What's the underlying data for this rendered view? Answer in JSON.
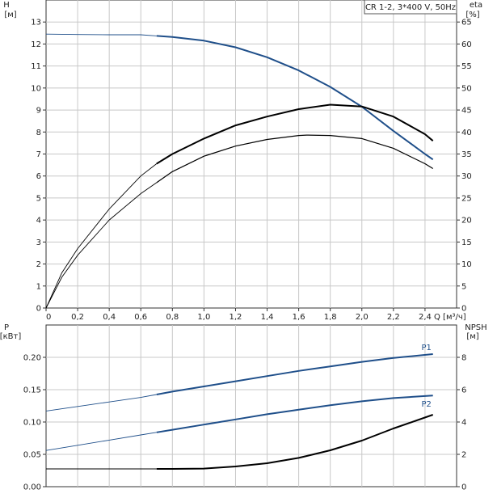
{
  "chart_data": [
    {
      "type": "line",
      "title": "CR 1-2, 3*400 V, 50Hz",
      "xlabel": "Q [м³/ч]",
      "ylabel_left": [
        "H",
        "[м]"
      ],
      "ylabel_right": [
        "eta",
        "[%]"
      ],
      "xlim": [
        0,
        2.6
      ],
      "ylim_left": [
        0,
        14
      ],
      "ylim_right": [
        0,
        70
      ],
      "x_ticks": [
        "0",
        "0,2",
        "0,4",
        "0,6",
        "0,8",
        "1,0",
        "1,2",
        "1,4",
        "1,6",
        "1,8",
        "2,0",
        "2,2",
        "2,4"
      ],
      "y_left_ticks": [
        "0",
        "1",
        "2",
        "3",
        "4",
        "5",
        "6",
        "7",
        "8",
        "9",
        "10",
        "11",
        "12",
        "13"
      ],
      "y_right_ticks": [
        "0",
        "5",
        "10",
        "15",
        "20",
        "25",
        "30",
        "35",
        "40",
        "45",
        "50",
        "55",
        "60",
        "65"
      ],
      "grid": true,
      "series": [
        {
          "axis": "left",
          "color": "#1f4f8a",
          "operating_range": [
            0.7,
            2.45
          ],
          "points": [
            [
              0,
              12.45
            ],
            [
              0.2,
              12.43
            ],
            [
              0.4,
              12.42
            ],
            [
              0.6,
              12.42
            ],
            [
              0.7,
              12.37
            ],
            [
              0.8,
              12.32
            ],
            [
              1.0,
              12.15
            ],
            [
              1.2,
              11.85
            ],
            [
              1.4,
              11.4
            ],
            [
              1.6,
              10.8
            ],
            [
              1.8,
              10.05
            ],
            [
              2.0,
              9.15
            ],
            [
              2.2,
              8.05
            ],
            [
              2.4,
              7.0
            ],
            [
              2.45,
              6.75
            ]
          ]
        },
        {
          "axis": "right",
          "color": "#000000",
          "operating_range": [
            0.7,
            2.45
          ],
          "points": [
            [
              0,
              0
            ],
            [
              0.1,
              8
            ],
            [
              0.2,
              13.5
            ],
            [
              0.4,
              22.5
            ],
            [
              0.6,
              30
            ],
            [
              0.7,
              32.8
            ],
            [
              0.8,
              35
            ],
            [
              1.0,
              38.5
            ],
            [
              1.2,
              41.5
            ],
            [
              1.4,
              43.5
            ],
            [
              1.6,
              45.2
            ],
            [
              1.8,
              46.2
            ],
            [
              2.0,
              45.8
            ],
            [
              2.2,
              43.5
            ],
            [
              2.4,
              39.5
            ],
            [
              2.45,
              38
            ]
          ]
        },
        {
          "axis": "right",
          "color": "#000000",
          "operating_range": [
            0.7,
            2.45
          ],
          "points": [
            [
              0,
              0
            ],
            [
              0.1,
              7
            ],
            [
              0.2,
              12
            ],
            [
              0.4,
              20
            ],
            [
              0.6,
              26
            ],
            [
              0.7,
              28.5
            ],
            [
              0.8,
              31
            ],
            [
              1.0,
              34.5
            ],
            [
              1.2,
              36.8
            ],
            [
              1.4,
              38.3
            ],
            [
              1.6,
              39.2
            ],
            [
              1.65,
              39.3
            ],
            [
              1.8,
              39.2
            ],
            [
              2.0,
              38.5
            ],
            [
              2.2,
              36.3
            ],
            [
              2.4,
              32.8
            ],
            [
              2.45,
              31.7
            ]
          ]
        }
      ]
    },
    {
      "type": "line",
      "xlim": [
        0,
        2.6
      ],
      "ylabel_left": [
        "P",
        "[кВт]"
      ],
      "ylabel_right": [
        "NPSH",
        "[м]"
      ],
      "ylim_left": [
        0,
        0.25
      ],
      "ylim_right": [
        0,
        10
      ],
      "y_left_ticks": [
        "0.00",
        "0.05",
        "0.10",
        "0.15",
        "0.20"
      ],
      "y_right_ticks": [
        "0",
        "2",
        "4",
        "6",
        "8"
      ],
      "grid": true,
      "series": [
        {
          "name": "P1",
          "axis": "left",
          "color": "#1f4f8a",
          "operating_range": [
            0.7,
            2.45
          ],
          "points": [
            [
              0,
              0.117
            ],
            [
              0.2,
              0.124
            ],
            [
              0.4,
              0.131
            ],
            [
              0.6,
              0.138
            ],
            [
              0.7,
              0.1425
            ],
            [
              0.8,
              0.147
            ],
            [
              1.0,
              0.155
            ],
            [
              1.2,
              0.163
            ],
            [
              1.4,
              0.171
            ],
            [
              1.6,
              0.179
            ],
            [
              1.8,
              0.186
            ],
            [
              2.0,
              0.193
            ],
            [
              2.2,
              0.199
            ],
            [
              2.45,
              0.205
            ]
          ]
        },
        {
          "name": "P2",
          "axis": "left",
          "color": "#1f4f8a",
          "operating_range": [
            0.7,
            2.45
          ],
          "points": [
            [
              0,
              0.056
            ],
            [
              0.2,
              0.064
            ],
            [
              0.4,
              0.072
            ],
            [
              0.6,
              0.08
            ],
            [
              0.7,
              0.084
            ],
            [
              0.8,
              0.088
            ],
            [
              1.0,
              0.096
            ],
            [
              1.2,
              0.104
            ],
            [
              1.4,
              0.112
            ],
            [
              1.6,
              0.119
            ],
            [
              1.8,
              0.126
            ],
            [
              2.0,
              0.132
            ],
            [
              2.2,
              0.137
            ],
            [
              2.45,
              0.141
            ]
          ]
        },
        {
          "axis": "right",
          "color": "#000000",
          "operating_range": [
            0.7,
            2.45
          ],
          "points": [
            [
              0,
              1.1
            ],
            [
              0.4,
              1.1
            ],
            [
              0.7,
              1.1
            ],
            [
              0.8,
              1.1
            ],
            [
              1.0,
              1.12
            ],
            [
              1.2,
              1.25
            ],
            [
              1.4,
              1.45
            ],
            [
              1.6,
              1.78
            ],
            [
              1.8,
              2.25
            ],
            [
              2.0,
              2.85
            ],
            [
              2.2,
              3.6
            ],
            [
              2.45,
              4.45
            ]
          ]
        }
      ]
    }
  ]
}
